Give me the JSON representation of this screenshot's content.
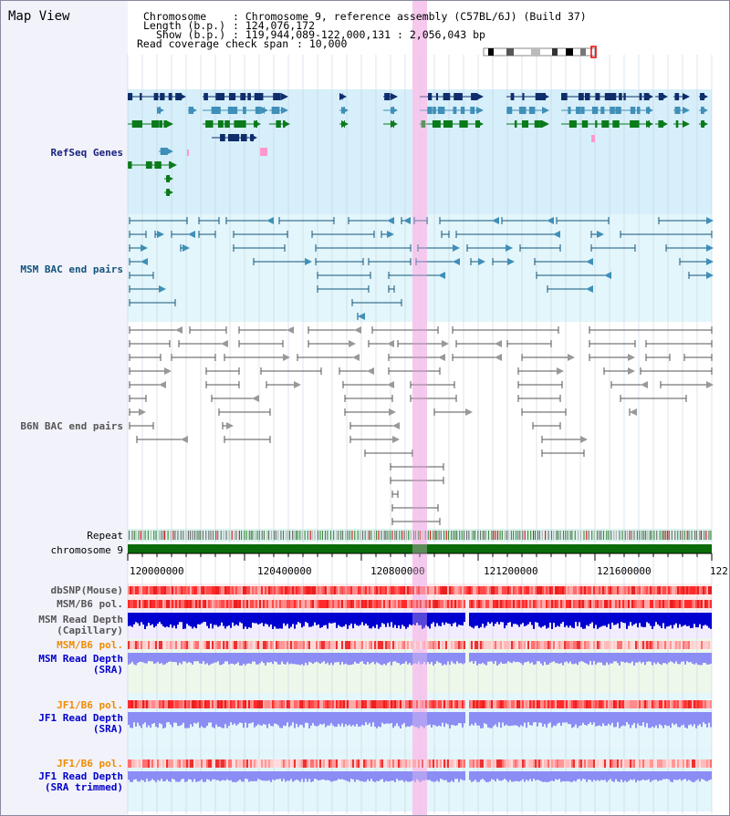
{
  "app_title": "Map View",
  "header": {
    "chromosome_key": "Chromosome",
    "chromosome_val": ": Chromosome 9, reference assembly (C57BL/6J) (Build 37)",
    "length_key": "Length (b.p.)",
    "length_val": ": 124,076,172",
    "show_key": "Show (b.p.)",
    "show_val": ": 119,944,089-122,000,131 : 2,056,043 bp",
    "coverage_key": "Read coverage check span",
    "coverage_val": ": 10,000"
  },
  "tracks": {
    "refseq": "RefSeq Genes",
    "msm_bac": "MSM BAC end pairs",
    "b6n_bac": "B6N BAC end pairs",
    "repeat": "Repeat",
    "chromosome": "chromosome 9",
    "dbsnp": "dbSNP(Mouse)",
    "msm_b6_pol_1": "MSM/B6 pol.",
    "msm_depth_cap_1": "MSM Read Depth",
    "msm_depth_cap_2": "(Capillary)",
    "msm_b6_pol_2": "MSM/B6 pol.",
    "msm_depth_sra_1": "MSM Read Depth",
    "msm_depth_sra_2": "(SRA)",
    "jf1_b6_pol_1": "JF1/B6 pol.",
    "jf1_depth_sra_1": "JF1 Read Depth",
    "jf1_depth_sra_2": "(SRA)",
    "jf1_b6_pol_2": "JF1/B6 pol.",
    "jf1_depth_trim_1": "JF1 Read Depth",
    "jf1_depth_trim_2": "(SRA trimmed)"
  },
  "axis": {
    "ticks": [
      "120000000",
      "120400000",
      "120800000",
      "121200000",
      "121600000",
      "122"
    ]
  },
  "colors": {
    "highlight": "#f6c8ee",
    "refseq_bg": "#d6effa",
    "bac_bg": "#e2f6fb",
    "gene_navy": "#0f2d6b",
    "gene_blue": "#3f8fb8",
    "gene_green": "#0a7a1a",
    "chromosome_green": "#0b6b0b",
    "depth_dark": "#0000d0",
    "depth_light": "#8c8cf5"
  }
}
